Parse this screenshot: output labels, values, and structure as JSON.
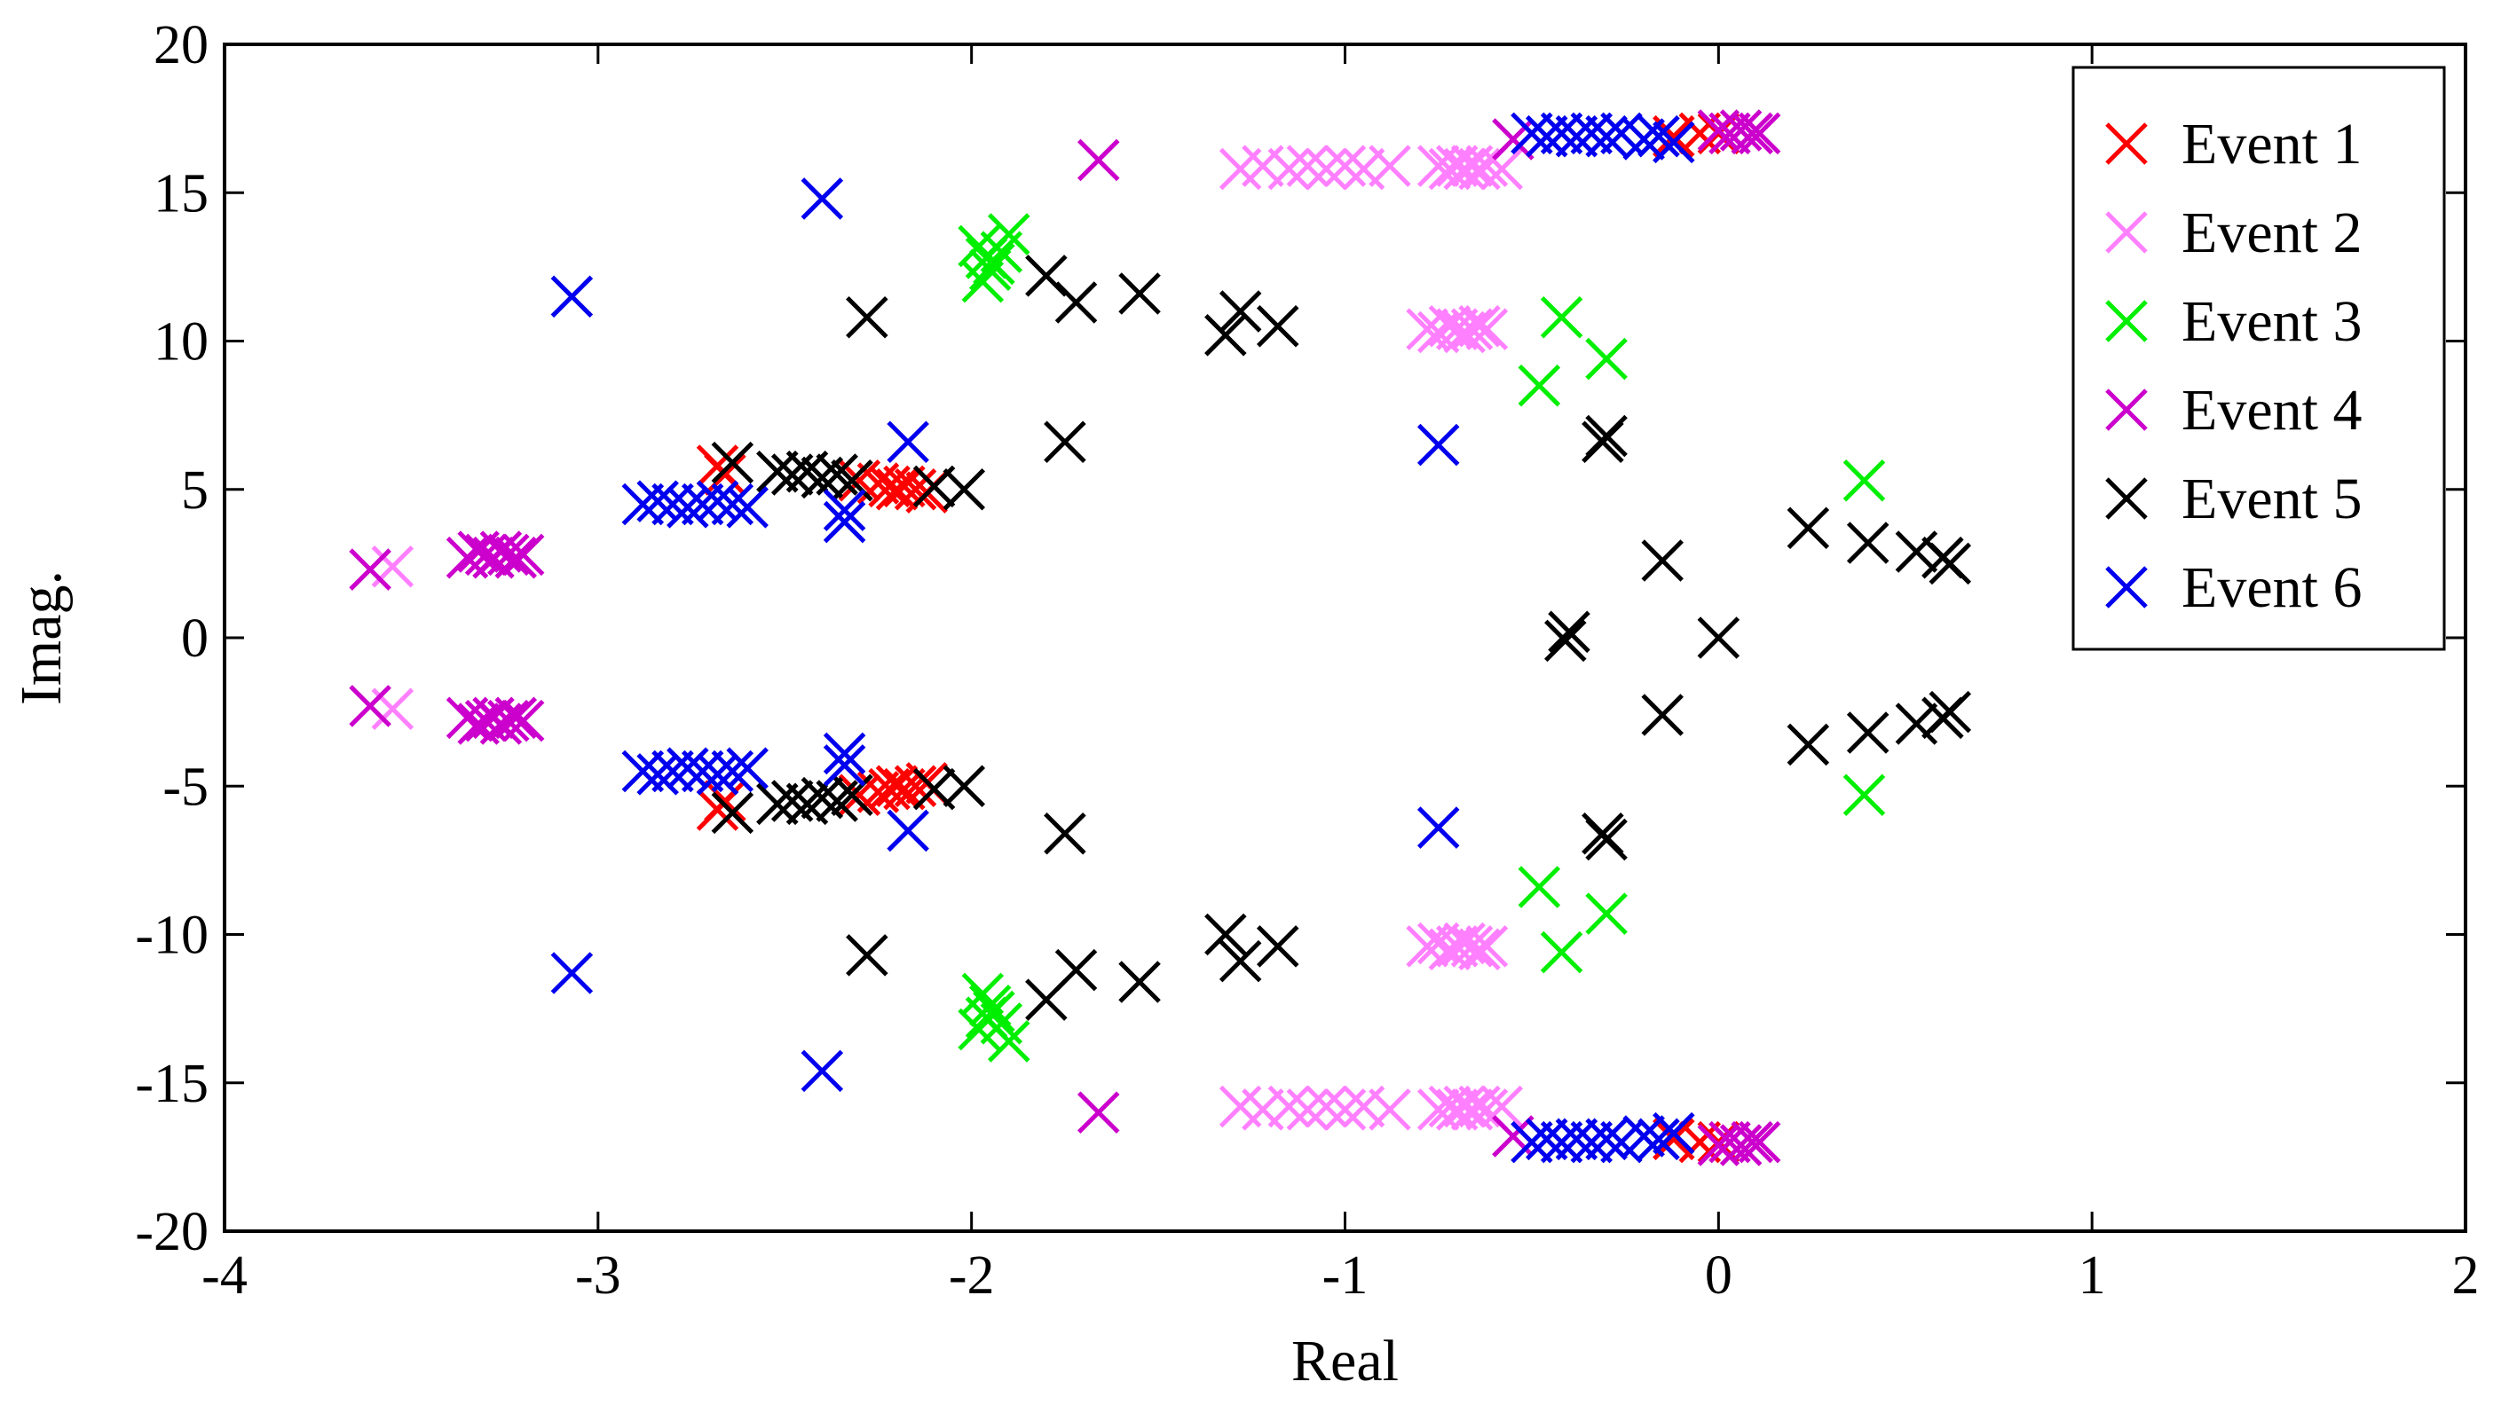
{
  "chart_data": {
    "type": "scatter",
    "title": "",
    "xlabel": "Real",
    "ylabel": "Imag.",
    "xlim": [
      -4,
      2
    ],
    "ylim": [
      -20,
      20
    ],
    "xticks": [
      -4,
      -3,
      -2,
      -1,
      0,
      1,
      2
    ],
    "yticks": [
      -20,
      -15,
      -10,
      -5,
      0,
      5,
      10,
      15,
      20
    ],
    "xtick_labels": [
      "-4",
      "-3",
      "-2",
      "-1",
      "0",
      "1",
      "2"
    ],
    "ytick_labels": [
      "-20",
      "-15",
      "-10",
      "-5",
      "0",
      "5",
      "10",
      "15",
      "20"
    ],
    "grid": false,
    "marker": "x",
    "legend_position": "top-right",
    "series": [
      {
        "name": "Event 1",
        "color": "#ff0000",
        "points": [
          [
            -2.68,
            5.8
          ],
          [
            -2.66,
            5.5
          ],
          [
            -2.3,
            5.3
          ],
          [
            -2.25,
            5.2
          ],
          [
            -2.22,
            5.1
          ],
          [
            -2.2,
            5.0
          ],
          [
            -2.18,
            5.1
          ],
          [
            -2.15,
            5.0
          ],
          [
            -2.12,
            4.9
          ],
          [
            -2.68,
            -5.8
          ],
          [
            -2.66,
            -5.5
          ],
          [
            -2.3,
            -5.3
          ],
          [
            -2.25,
            -5.2
          ],
          [
            -2.22,
            -5.1
          ],
          [
            -2.2,
            -5.0
          ],
          [
            -2.18,
            -5.1
          ],
          [
            -2.15,
            -5.0
          ],
          [
            -2.12,
            -4.9
          ],
          [
            -0.12,
            16.9
          ],
          [
            -0.05,
            17.0
          ],
          [
            0.0,
            17.0
          ],
          [
            -0.12,
            -16.9
          ],
          [
            -0.05,
            -17.0
          ],
          [
            0.0,
            -17.0
          ]
        ]
      },
      {
        "name": "Event 2",
        "color": "#ff80ff",
        "points": [
          [
            -3.55,
            2.4
          ],
          [
            -3.55,
            -2.4
          ],
          [
            -1.28,
            15.8
          ],
          [
            -1.22,
            15.9
          ],
          [
            -1.15,
            15.8
          ],
          [
            -1.1,
            15.9
          ],
          [
            -1.05,
            15.8
          ],
          [
            -1.0,
            15.9
          ],
          [
            -0.95,
            15.8
          ],
          [
            -0.88,
            15.9
          ],
          [
            -0.75,
            15.9
          ],
          [
            -0.72,
            15.8
          ],
          [
            -0.7,
            15.9
          ],
          [
            -0.68,
            15.8
          ],
          [
            -0.66,
            15.9
          ],
          [
            -0.64,
            15.8
          ],
          [
            -0.62,
            15.9
          ],
          [
            -0.58,
            15.8
          ],
          [
            -1.28,
            -15.8
          ],
          [
            -1.22,
            -15.9
          ],
          [
            -1.15,
            -15.8
          ],
          [
            -1.1,
            -15.9
          ],
          [
            -1.05,
            -15.8
          ],
          [
            -1.0,
            -15.9
          ],
          [
            -0.95,
            -15.8
          ],
          [
            -0.88,
            -15.9
          ],
          [
            -0.75,
            -15.9
          ],
          [
            -0.72,
            -15.8
          ],
          [
            -0.7,
            -15.9
          ],
          [
            -0.68,
            -15.8
          ],
          [
            -0.66,
            -15.9
          ],
          [
            -0.64,
            -15.8
          ],
          [
            -0.62,
            -15.9
          ],
          [
            -0.58,
            -15.8
          ],
          [
            -0.78,
            10.4
          ],
          [
            -0.75,
            10.3
          ],
          [
            -0.72,
            10.5
          ],
          [
            -0.7,
            10.4
          ],
          [
            -0.68,
            10.3
          ],
          [
            -0.66,
            10.4
          ],
          [
            -0.64,
            10.5
          ],
          [
            -0.62,
            10.4
          ],
          [
            -0.78,
            -10.4
          ],
          [
            -0.75,
            -10.3
          ],
          [
            -0.72,
            -10.5
          ],
          [
            -0.7,
            -10.4
          ],
          [
            -0.68,
            -10.3
          ],
          [
            -0.66,
            -10.4
          ],
          [
            -0.64,
            -10.5
          ],
          [
            -0.62,
            -10.4
          ]
        ]
      },
      {
        "name": "Event 3",
        "color": "#00ee00",
        "points": [
          [
            -1.98,
            13.2
          ],
          [
            -1.96,
            12.8
          ],
          [
            -1.95,
            12.4
          ],
          [
            -1.97,
            12.0
          ],
          [
            -1.94,
            12.6
          ],
          [
            -1.92,
            13.0
          ],
          [
            -1.9,
            13.6
          ],
          [
            -1.98,
            -13.2
          ],
          [
            -1.96,
            -12.8
          ],
          [
            -1.95,
            -12.4
          ],
          [
            -1.97,
            -12.0
          ],
          [
            -1.94,
            -12.6
          ],
          [
            -1.92,
            -13.0
          ],
          [
            -1.9,
            -13.6
          ],
          [
            -0.42,
            10.8
          ],
          [
            -0.48,
            8.5
          ],
          [
            -0.3,
            9.4
          ],
          [
            -0.42,
            -10.6
          ],
          [
            -0.48,
            -8.4
          ],
          [
            -0.3,
            -9.3
          ],
          [
            0.39,
            5.3
          ],
          [
            0.39,
            -5.3
          ]
        ]
      },
      {
        "name": "Event 4",
        "color": "#cc00cc",
        "points": [
          [
            -3.61,
            2.3
          ],
          [
            -3.61,
            -2.3
          ],
          [
            -3.35,
            2.7
          ],
          [
            -3.32,
            2.9
          ],
          [
            -3.3,
            2.8
          ],
          [
            -3.28,
            2.7
          ],
          [
            -3.26,
            2.9
          ],
          [
            -3.24,
            2.8
          ],
          [
            -3.22,
            2.7
          ],
          [
            -3.2,
            2.8
          ],
          [
            -3.35,
            -2.7
          ],
          [
            -3.32,
            -2.9
          ],
          [
            -3.3,
            -2.8
          ],
          [
            -3.28,
            -2.7
          ],
          [
            -3.26,
            -2.9
          ],
          [
            -3.24,
            -2.8
          ],
          [
            -3.22,
            -2.7
          ],
          [
            -3.2,
            -2.8
          ],
          [
            -1.66,
            16.1
          ],
          [
            -1.66,
            -16.0
          ],
          [
            -0.55,
            16.8
          ],
          [
            -0.55,
            -16.8
          ],
          [
            0.0,
            17.1
          ],
          [
            0.03,
            17.0
          ],
          [
            0.06,
            17.1
          ],
          [
            0.09,
            17.0
          ],
          [
            0.11,
            17.0
          ],
          [
            0.0,
            -17.1
          ],
          [
            0.03,
            -17.0
          ],
          [
            0.06,
            -17.1
          ],
          [
            0.09,
            -17.0
          ],
          [
            0.11,
            -17.0
          ]
        ]
      },
      {
        "name": "Event 5",
        "color": "#000000",
        "points": [
          [
            -2.64,
            5.9
          ],
          [
            -2.52,
            5.6
          ],
          [
            -2.48,
            5.5
          ],
          [
            -2.44,
            5.6
          ],
          [
            -2.4,
            5.4
          ],
          [
            -2.36,
            5.5
          ],
          [
            -2.32,
            5.3
          ],
          [
            -2.1,
            5.1
          ],
          [
            -2.02,
            5.0
          ],
          [
            -2.64,
            -5.9
          ],
          [
            -2.52,
            -5.6
          ],
          [
            -2.48,
            -5.5
          ],
          [
            -2.44,
            -5.6
          ],
          [
            -2.4,
            -5.4
          ],
          [
            -2.36,
            -5.5
          ],
          [
            -2.32,
            -5.3
          ],
          [
            -2.1,
            -5.1
          ],
          [
            -2.02,
            -5.0
          ],
          [
            -2.28,
            10.8
          ],
          [
            -2.28,
            -10.7
          ],
          [
            -1.8,
            12.2
          ],
          [
            -1.72,
            11.3
          ],
          [
            -1.55,
            11.6
          ],
          [
            -1.8,
            -12.2
          ],
          [
            -1.72,
            -11.2
          ],
          [
            -1.55,
            -11.6
          ],
          [
            -1.75,
            6.6
          ],
          [
            -1.75,
            -6.6
          ],
          [
            -1.32,
            10.2
          ],
          [
            -1.28,
            11.0
          ],
          [
            -1.18,
            10.5
          ],
          [
            -1.32,
            -10.0
          ],
          [
            -1.28,
            -10.9
          ],
          [
            -1.18,
            -10.4
          ],
          [
            -0.3,
            6.8
          ],
          [
            -0.31,
            6.6
          ],
          [
            -0.3,
            -6.8
          ],
          [
            -0.31,
            -6.6
          ],
          [
            -0.4,
            0.2
          ],
          [
            -0.41,
            -0.1
          ],
          [
            -0.15,
            2.6
          ],
          [
            -0.15,
            -2.6
          ],
          [
            0.0,
            0.0
          ],
          [
            0.24,
            3.7
          ],
          [
            0.24,
            -3.6
          ],
          [
            0.4,
            3.2
          ],
          [
            0.4,
            -3.2
          ],
          [
            0.53,
            2.9
          ],
          [
            0.53,
            -2.9
          ],
          [
            0.6,
            2.7
          ],
          [
            0.62,
            2.5
          ],
          [
            0.6,
            -2.7
          ],
          [
            0.62,
            -2.5
          ]
        ]
      },
      {
        "name": "Event 6",
        "color": "#0000ee",
        "points": [
          [
            -3.07,
            11.5
          ],
          [
            -3.07,
            -11.3
          ],
          [
            -2.4,
            14.8
          ],
          [
            -2.4,
            -14.6
          ],
          [
            -2.88,
            4.5
          ],
          [
            -2.84,
            4.6
          ],
          [
            -2.8,
            4.5
          ],
          [
            -2.76,
            4.4
          ],
          [
            -2.72,
            4.5
          ],
          [
            -2.68,
            4.6
          ],
          [
            -2.64,
            4.5
          ],
          [
            -2.6,
            4.4
          ],
          [
            -2.88,
            -4.5
          ],
          [
            -2.84,
            -4.6
          ],
          [
            -2.8,
            -4.5
          ],
          [
            -2.76,
            -4.4
          ],
          [
            -2.72,
            -4.5
          ],
          [
            -2.68,
            -4.6
          ],
          [
            -2.64,
            -4.5
          ],
          [
            -2.6,
            -4.4
          ],
          [
            -2.34,
            3.9
          ],
          [
            -2.34,
            4.3
          ],
          [
            -2.34,
            -3.9
          ],
          [
            -2.34,
            -4.3
          ],
          [
            -2.17,
            6.6
          ],
          [
            -2.17,
            -6.5
          ],
          [
            -0.75,
            6.5
          ],
          [
            -0.75,
            -6.4
          ],
          [
            -0.5,
            17.0
          ],
          [
            -0.46,
            16.9
          ],
          [
            -0.42,
            17.0
          ],
          [
            -0.38,
            16.9
          ],
          [
            -0.34,
            17.0
          ],
          [
            -0.3,
            16.9
          ],
          [
            -0.26,
            17.0
          ],
          [
            -0.2,
            16.8
          ],
          [
            -0.16,
            16.9
          ],
          [
            -0.12,
            16.7
          ],
          [
            -0.5,
            -17.0
          ],
          [
            -0.46,
            -16.9
          ],
          [
            -0.42,
            -17.0
          ],
          [
            -0.38,
            -16.9
          ],
          [
            -0.34,
            -17.0
          ],
          [
            -0.3,
            -16.9
          ],
          [
            -0.26,
            -17.0
          ],
          [
            -0.2,
            -16.8
          ],
          [
            -0.16,
            -16.9
          ],
          [
            -0.12,
            -16.7
          ]
        ]
      }
    ]
  }
}
